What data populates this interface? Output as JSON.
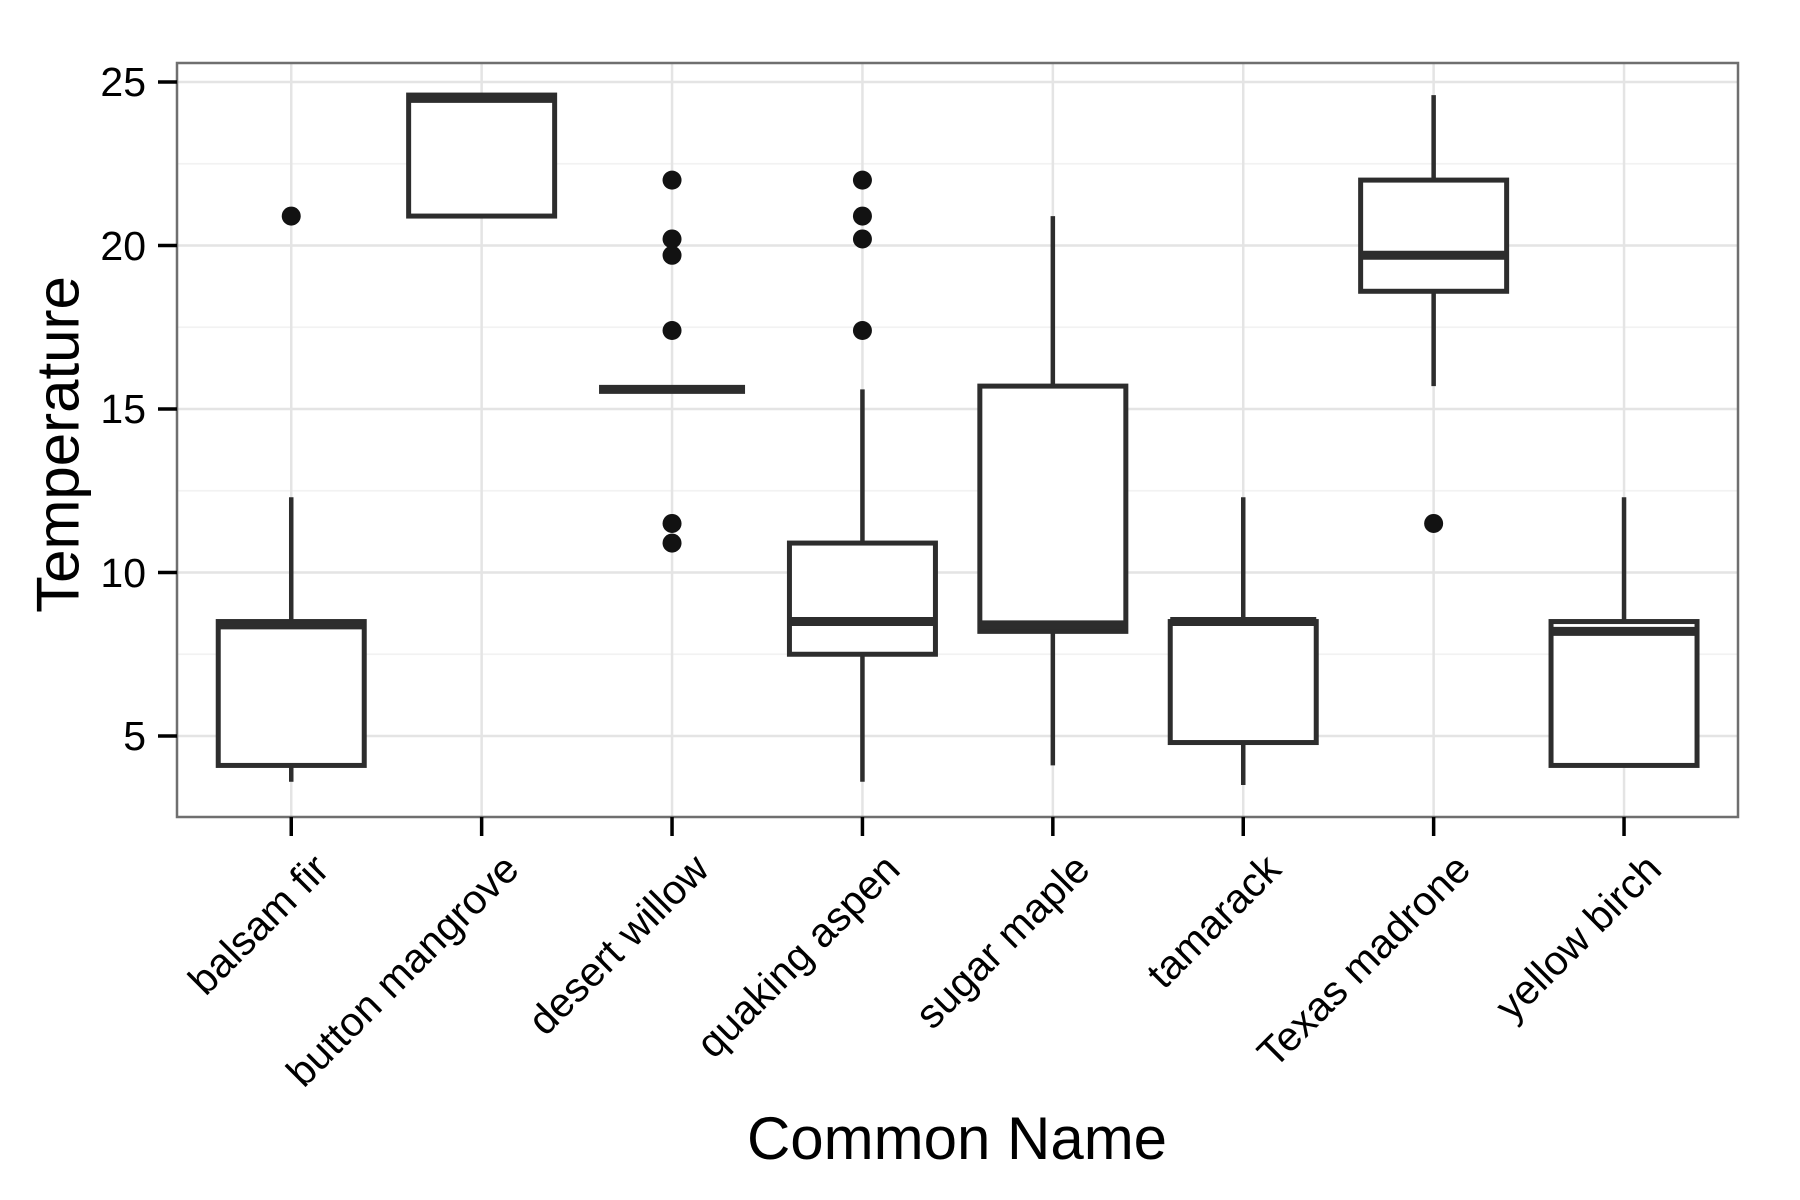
{
  "chart_data": {
    "type": "boxplot",
    "title": "",
    "xlabel": "Common Name",
    "ylabel": "Temperature",
    "y_axis": {
      "tick_labels": [
        "5",
        "10",
        "15",
        "20",
        "25"
      ],
      "ticks": [
        5,
        10,
        15,
        20,
        25
      ],
      "minor_gridlines": [
        7.5,
        12.5,
        17.5,
        22.5
      ],
      "range": [
        2.5,
        25.6
      ],
      "grid": "on"
    },
    "categories": [
      "balsam fir",
      "button mangrove",
      "desert willow",
      "quaking aspen",
      "sugar maple",
      "tamarack",
      "Texas madrone",
      "yellow birch"
    ],
    "boxes": [
      {
        "category": "balsam fir",
        "whisker_low": 3.6,
        "q1": 4.1,
        "median": 8.4,
        "q3": 8.5,
        "whisker_high": 12.3,
        "outliers": [
          20.9
        ]
      },
      {
        "category": "button mangrove",
        "whisker_low": 20.9,
        "q1": 20.9,
        "median": 24.5,
        "q3": 24.6,
        "whisker_high": 24.6,
        "outliers": []
      },
      {
        "category": "desert willow",
        "whisker_low": 15.6,
        "q1": 15.6,
        "median": 15.6,
        "q3": 15.6,
        "whisker_high": 15.6,
        "outliers": [
          22.0,
          20.2,
          19.7,
          17.4,
          11.5,
          10.9
        ]
      },
      {
        "category": "quaking aspen",
        "whisker_low": 3.6,
        "q1": 7.5,
        "median": 8.5,
        "q3": 10.9,
        "whisker_high": 15.6,
        "outliers": [
          22.0,
          20.9,
          20.2,
          17.4
        ]
      },
      {
        "category": "sugar maple",
        "whisker_low": 4.1,
        "q1": 8.2,
        "median": 8.4,
        "q3": 15.7,
        "whisker_high": 20.9,
        "outliers": []
      },
      {
        "category": "tamarack",
        "whisker_low": 3.5,
        "q1": 4.8,
        "median": 8.5,
        "q3": 8.5,
        "whisker_high": 12.3,
        "outliers": []
      },
      {
        "category": "Texas madrone",
        "whisker_low": 15.7,
        "q1": 18.6,
        "median": 19.7,
        "q3": 22.0,
        "whisker_high": 24.6,
        "outliers": [
          11.5
        ]
      },
      {
        "category": "yellow birch",
        "whisker_low": 4.1,
        "q1": 4.1,
        "median": 8.2,
        "q3": 8.5,
        "whisker_high": 12.3,
        "outliers": []
      }
    ],
    "legend": "none",
    "colors": {
      "box_stroke": "#2d2d2d",
      "box_fill": "#ffffff",
      "median": "#2d2d2d",
      "outlier": "#121212",
      "grid_major": "#e4e4e4",
      "grid_minor": "#f2f2f2",
      "panel_border": "#6f6f6f",
      "tick": "#000000",
      "background": "#ffffff"
    }
  }
}
